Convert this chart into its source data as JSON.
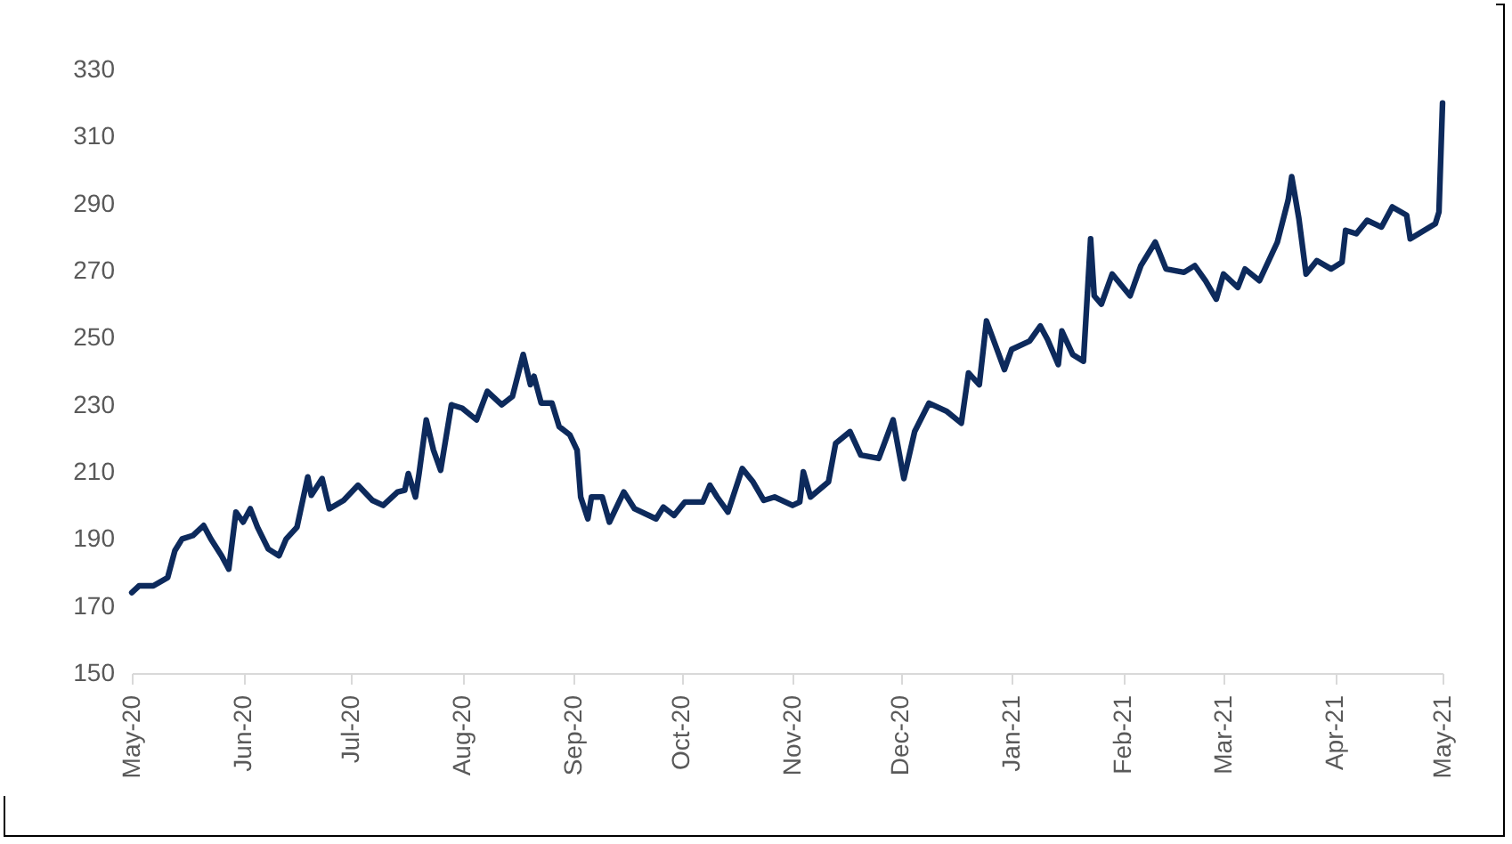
{
  "chart_data": {
    "type": "line",
    "line_style": "solid",
    "marker": "none",
    "grid": false,
    "legend": false,
    "x": [
      "2020-05-01",
      "2020-05-03",
      "2020-05-07",
      "2020-05-11",
      "2020-05-13",
      "2020-05-15",
      "2020-05-18",
      "2020-05-21",
      "2020-05-23",
      "2020-05-26",
      "2020-05-28",
      "2020-05-30",
      "2020-06-01",
      "2020-06-03",
      "2020-06-05",
      "2020-06-08",
      "2020-06-11",
      "2020-06-13",
      "2020-06-16",
      "2020-06-19",
      "2020-06-20",
      "2020-06-23",
      "2020-06-25",
      "2020-06-29",
      "2020-07-03",
      "2020-07-07",
      "2020-07-10",
      "2020-07-14",
      "2020-07-16",
      "2020-07-17",
      "2020-07-19",
      "2020-07-20",
      "2020-07-22",
      "2020-07-24",
      "2020-07-26",
      "2020-07-29",
      "2020-08-01",
      "2020-08-05",
      "2020-08-08",
      "2020-08-12",
      "2020-08-15",
      "2020-08-18",
      "2020-08-20",
      "2020-08-21",
      "2020-08-23",
      "2020-08-26",
      "2020-08-28",
      "2020-08-31",
      "2020-09-02",
      "2020-09-03",
      "2020-09-05",
      "2020-09-06",
      "2020-09-09",
      "2020-09-11",
      "2020-09-15",
      "2020-09-18",
      "2020-09-24",
      "2020-09-26",
      "2020-09-29",
      "2020-10-02",
      "2020-10-07",
      "2020-10-09",
      "2020-10-11",
      "2020-10-14",
      "2020-10-18",
      "2020-10-21",
      "2020-10-24",
      "2020-10-27",
      "2020-11-01",
      "2020-11-03",
      "2020-11-04",
      "2020-11-06",
      "2020-11-11",
      "2020-11-13",
      "2020-11-17",
      "2020-11-20",
      "2020-11-25",
      "2020-11-29",
      "2020-12-02",
      "2020-12-05",
      "2020-12-09",
      "2020-12-14",
      "2020-12-18",
      "2020-12-20",
      "2020-12-23",
      "2020-12-25",
      "2020-12-30",
      "2021-01-01",
      "2021-01-06",
      "2021-01-09",
      "2021-01-11",
      "2021-01-14",
      "2021-01-15",
      "2021-01-18",
      "2021-01-21",
      "2021-01-23",
      "2021-01-24",
      "2021-01-26",
      "2021-01-29",
      "2021-02-03",
      "2021-02-06",
      "2021-02-10",
      "2021-02-13",
      "2021-02-18",
      "2021-02-21",
      "2021-02-24",
      "2021-02-27",
      "2021-03-01",
      "2021-03-05",
      "2021-03-07",
      "2021-03-11",
      "2021-03-16",
      "2021-03-19",
      "2021-03-20",
      "2021-03-22",
      "2021-03-24",
      "2021-03-27",
      "2021-03-31",
      "2021-04-03",
      "2021-04-04",
      "2021-04-07",
      "2021-04-10",
      "2021-04-14",
      "2021-04-17",
      "2021-04-21",
      "2021-04-22",
      "2021-04-29",
      "2021-04-30",
      "2021-05-01"
    ],
    "series": [
      {
        "color": "#0d2a5c",
        "values": [
          174,
          176,
          176,
          178.5,
          186.5,
          190,
          191,
          194,
          190,
          185,
          181,
          198,
          195,
          199,
          193.5,
          187,
          185,
          190,
          193.5,
          208.5,
          203,
          208,
          199,
          201.5,
          206,
          201.5,
          200,
          204,
          204.5,
          209.5,
          202.5,
          209.5,
          225.5,
          216.5,
          210.5,
          230,
          229,
          225.5,
          234,
          230,
          232.5,
          245,
          236,
          238.5,
          230.5,
          230.5,
          223.5,
          221,
          216.5,
          202.5,
          196,
          202.5,
          202.5,
          195,
          204,
          199,
          196,
          199.5,
          197,
          201,
          201,
          206,
          202.5,
          198,
          211,
          207,
          201.5,
          202.5,
          200,
          201,
          210,
          202.5,
          207,
          218.5,
          222,
          215,
          214,
          225.5,
          208,
          222,
          230.5,
          228,
          224.5,
          239.5,
          236,
          255,
          240.5,
          246.5,
          249,
          253.5,
          249.5,
          242,
          252,
          245,
          243,
          279.5,
          262.5,
          260,
          269,
          262.5,
          271.5,
          278.5,
          270.5,
          269.5,
          271.5,
          267,
          261.5,
          269,
          265,
          270.5,
          267,
          278.5,
          291,
          298,
          285.5,
          269,
          273,
          270.5,
          272.5,
          282,
          281,
          285,
          283,
          289,
          286.5,
          279.5,
          284,
          287.5,
          320
        ]
      }
    ],
    "xlim": [
      "2020-05-01",
      "2021-05-01"
    ],
    "xticks": [
      {
        "value": "2020-05-01",
        "label": "May-20"
      },
      {
        "value": "2020-06-01",
        "label": "Jun-20"
      },
      {
        "value": "2020-07-01",
        "label": "Jul-20"
      },
      {
        "value": "2020-08-01",
        "label": "Aug-20"
      },
      {
        "value": "2020-09-01",
        "label": "Sep-20"
      },
      {
        "value": "2020-10-01",
        "label": "Oct-20"
      },
      {
        "value": "2020-11-01",
        "label": "Nov-20"
      },
      {
        "value": "2020-12-01",
        "label": "Dec-20"
      },
      {
        "value": "2021-01-01",
        "label": "Jan-21"
      },
      {
        "value": "2021-02-01",
        "label": "Feb-21"
      },
      {
        "value": "2021-03-01",
        "label": "Mar-21"
      },
      {
        "value": "2021-04-01",
        "label": "Apr-21"
      },
      {
        "value": "2021-05-01",
        "label": "May-21"
      }
    ],
    "ylim": [
      150,
      330
    ],
    "yticks": [
      150,
      170,
      190,
      210,
      230,
      250,
      270,
      290,
      310,
      330
    ]
  }
}
